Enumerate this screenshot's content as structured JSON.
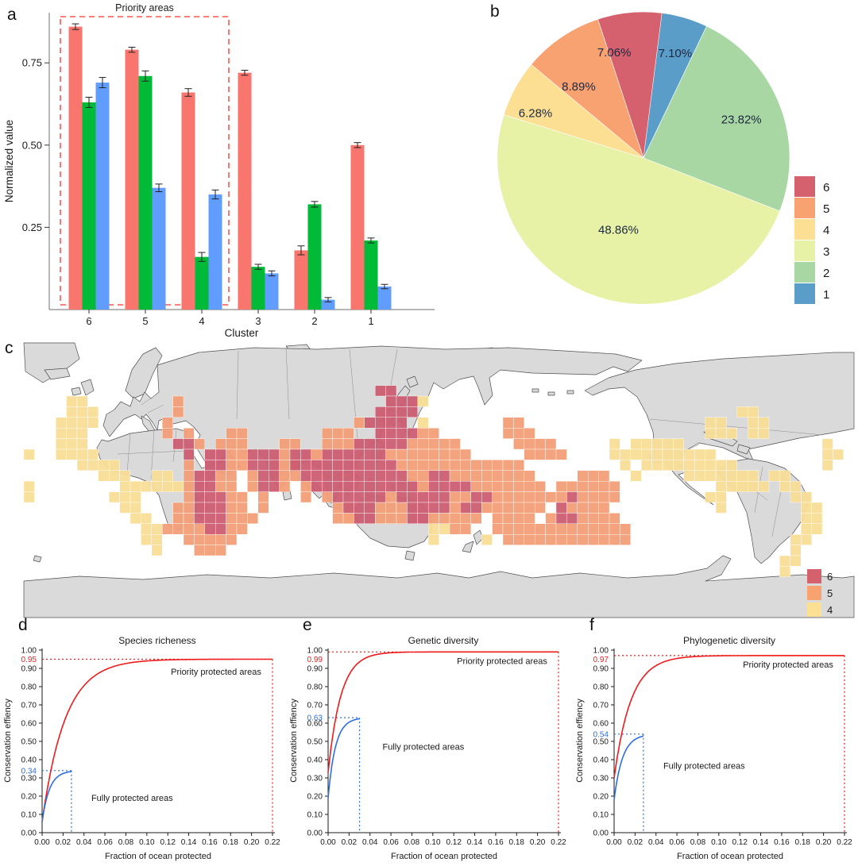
{
  "panels": {
    "a": "a",
    "b": "b",
    "c": "c",
    "d": "d",
    "e": "e",
    "f": "f"
  },
  "chart_data": {
    "a": {
      "type": "bar",
      "title": "Priority areas",
      "xlabel": "Cluster",
      "ylabel": "Normalized value",
      "categories": [
        "6",
        "5",
        "4",
        "3",
        "2",
        "1"
      ],
      "yticks": [
        0.25,
        0.5,
        0.75
      ],
      "ylim": [
        0,
        0.9
      ],
      "priority_box_categories": [
        "6",
        "5",
        "4"
      ],
      "priority_color": "#f8564e",
      "series": [
        {
          "name": "red",
          "color": "#f8766d",
          "values": [
            0.86,
            0.79,
            0.66,
            0.72,
            0.18,
            0.5
          ],
          "errors": [
            0.005,
            0.004,
            0.008,
            0.004,
            0.01,
            0.004
          ]
        },
        {
          "name": "green",
          "color": "#00ba38",
          "values": [
            0.63,
            0.71,
            0.16,
            0.13,
            0.32,
            0.21
          ],
          "errors": [
            0.012,
            0.012,
            0.01,
            0.004,
            0.005,
            0.004
          ]
        },
        {
          "name": "blue",
          "color": "#619cff",
          "values": [
            0.69,
            0.37,
            0.35,
            0.11,
            0.03,
            0.07
          ],
          "errors": [
            0.012,
            0.008,
            0.01,
            0.004,
            0.003,
            0.003
          ]
        }
      ]
    },
    "b": {
      "type": "pie",
      "start": "top",
      "direction": "clockwise",
      "label_color": "#1c2940",
      "slices": [
        {
          "label": "1",
          "value": 7.1,
          "pct": "7.10%",
          "color": "#5b9dc9",
          "lr": 0.75,
          "da": 4
        },
        {
          "label": "2",
          "value": 23.82,
          "pct": "23.82%",
          "color": "#a9d7a4",
          "lr": 0.72,
          "da": 0
        },
        {
          "label": "3",
          "value": 48.86,
          "pct": "48.86%",
          "color": "#e7f2a6",
          "lr": 0.52,
          "da": 0
        },
        {
          "label": "4",
          "value": 6.28,
          "pct": "6.28%",
          "color": "#fcdf92",
          "lr": 0.8,
          "da": -6
        },
        {
          "label": "5",
          "value": 8.89,
          "pct": "8.89%",
          "color": "#f8a171",
          "lr": 0.66,
          "da": -8
        },
        {
          "label": "6",
          "value": 7.06,
          "pct": "7.06%",
          "color": "#d5606e",
          "lr": 0.75,
          "da": -10
        }
      ],
      "legend": [
        {
          "label": "6",
          "color": "#d5606e"
        },
        {
          "label": "5",
          "color": "#f8a171"
        },
        {
          "label": "4",
          "color": "#fcdf92"
        },
        {
          "label": "3",
          "color": "#e7f2a6"
        },
        {
          "label": "2",
          "color": "#a9d7a4"
        },
        {
          "label": "1",
          "color": "#5b9dc9"
        }
      ]
    },
    "c": {
      "type": "map",
      "land_color": "#dadada",
      "coast_color": "#4f4f4f",
      "cell_size": 13.4,
      "legend": [
        {
          "label": "6",
          "color": "#d5606e"
        },
        {
          "label": "5",
          "color": "#f8a171"
        },
        {
          "label": "4",
          "color": "#fbe094"
        }
      ],
      "clusters": [
        {
          "label": "4",
          "color": "#f8dd96",
          "rows": {
            "5": [
              4,
              5,
              37
            ],
            "6": [
              4,
              5,
              6,
              67,
              68
            ],
            "7": [
              3,
              4,
              5,
              6,
              37,
              64,
              65,
              68,
              69
            ],
            "8": [
              3,
              4,
              5,
              64,
              65,
              66,
              68,
              69
            ],
            "9": [
              3,
              4,
              5,
              55,
              57,
              58,
              59,
              60,
              61,
              75
            ],
            "10": [
              0,
              3,
              4,
              5,
              6,
              55,
              56,
              57,
              58,
              59,
              60,
              61,
              62,
              63,
              64,
              75,
              76
            ],
            "11": [
              5,
              6,
              7,
              8,
              56,
              58,
              59,
              60,
              61,
              62,
              63,
              64,
              65,
              66,
              75
            ],
            "12": [
              7,
              8,
              9,
              12,
              13,
              57,
              62,
              63,
              64,
              65,
              66,
              67,
              68,
              70,
              71
            ],
            "13": [
              0,
              9,
              10,
              11,
              12,
              13,
              14,
              65,
              66,
              67,
              68,
              69,
              71,
              72
            ],
            "14": [
              0,
              8,
              9,
              10,
              64,
              65,
              72,
              73
            ],
            "15": [
              9,
              10,
              30,
              65,
              73,
              74
            ],
            "16": [
              10,
              11,
              30,
              73,
              74
            ],
            "17": [
              11,
              12,
              38,
              39,
              73,
              74
            ],
            "18": [
              11,
              12,
              38,
              43,
              72,
              73
            ],
            "19": [
              12,
              72
            ],
            "20": [
              71,
              72
            ],
            "21": [
              71
            ]
          }
        },
        {
          "label": "5",
          "color": "#f29e77",
          "rows": {
            "5": [
              14
            ],
            "6": [
              14
            ],
            "7": [
              13,
              31,
              45,
              46
            ],
            "8": [
              13,
              15,
              19,
              20,
              28,
              29,
              30,
              37,
              38,
              45,
              46,
              47
            ],
            "9": [
              16,
              18,
              19,
              20,
              24,
              25,
              28,
              29,
              30,
              36,
              37,
              38,
              39,
              40,
              46,
              47,
              48,
              49
            ],
            "10": [
              19,
              20,
              24,
              27,
              34,
              35,
              36,
              37,
              38,
              39,
              40,
              41,
              47,
              48,
              49,
              50
            ],
            "11": [
              15,
              19,
              20,
              24,
              25,
              35,
              36,
              37,
              38,
              39,
              40,
              41,
              42,
              43,
              44,
              45,
              46
            ],
            "12": [
              15,
              18,
              19,
              21,
              24,
              25,
              36,
              37,
              40,
              41,
              42,
              43,
              44,
              45,
              46,
              47,
              52,
              53,
              54
            ],
            "13": [
              15,
              18,
              19,
              21,
              24,
              26,
              37,
              42,
              43,
              44,
              45,
              46,
              47,
              48,
              50,
              51,
              52,
              53,
              54,
              55
            ],
            "14": [
              15,
              19,
              20,
              22,
              26,
              28,
              34,
              40,
              41,
              44,
              45,
              46,
              47,
              48,
              49,
              50,
              52,
              53,
              54,
              55
            ],
            "15": [
              14,
              15,
              19,
              20,
              22,
              29,
              33,
              34,
              35,
              40,
              43,
              44,
              45,
              46,
              47,
              48,
              51,
              52,
              53,
              54
            ],
            "16": [
              14,
              15,
              19,
              20,
              21,
              29,
              30,
              33,
              34,
              35,
              38,
              39,
              40,
              41,
              42,
              44,
              45,
              46,
              47,
              49,
              52,
              53,
              54,
              55
            ],
            "17": [
              13,
              14,
              15,
              16,
              19,
              20,
              40,
              41,
              44,
              45,
              46,
              47,
              48,
              49,
              50,
              51,
              52,
              53,
              54,
              55,
              56
            ],
            "18": [
              15,
              16,
              17,
              18,
              19,
              45,
              46,
              47,
              48,
              49,
              50,
              51,
              52,
              53,
              54,
              55,
              56
            ],
            "19": [
              16,
              17,
              18
            ]
          }
        },
        {
          "label": "6",
          "color": "#cb5d72",
          "rows": {
            "4": [
              33,
              34
            ],
            "5": [
              34,
              35,
              36
            ],
            "6": [
              33,
              34,
              35,
              36
            ],
            "7": [
              32,
              33,
              34,
              35
            ],
            "8": [
              33,
              34,
              35,
              36
            ],
            "9": [
              14,
              15,
              31,
              32,
              33,
              34,
              35
            ],
            "10": [
              15,
              17,
              18,
              21,
              22,
              23,
              25,
              26,
              28,
              29,
              30,
              31,
              32,
              33
            ],
            "11": [
              17,
              18,
              21,
              22,
              23,
              25,
              26,
              27,
              28,
              29,
              30,
              31,
              32,
              33,
              34
            ],
            "12": [
              16,
              17,
              22,
              23,
              26,
              27,
              28,
              29,
              30,
              31,
              32,
              33,
              34,
              35,
              38,
              39
            ],
            "13": [
              16,
              17,
              22,
              23,
              27,
              28,
              29,
              30,
              31,
              32,
              33,
              34,
              35,
              36,
              38,
              39,
              40,
              41
            ],
            "14": [
              16,
              17,
              18,
              29,
              30,
              31,
              32,
              33,
              35,
              36,
              37,
              38,
              39,
              42,
              43,
              51
            ],
            "15": [
              16,
              17,
              18,
              30,
              31,
              32,
              36,
              37,
              38,
              39,
              41,
              42,
              50
            ],
            "16": [
              16,
              17,
              18,
              31,
              32,
              36,
              37,
              50,
              51
            ],
            "17": [
              17,
              18
            ]
          }
        }
      ]
    },
    "d": {
      "type": "line",
      "title": "Species richeness",
      "xlabel": "Fraction of ocean protected",
      "ylabel": "Conservation effiency",
      "xlim": [
        0,
        0.22
      ],
      "ylim": [
        0,
        1.0
      ],
      "red": {
        "label": "0.95",
        "start": 0.06,
        "end": 0.95,
        "tau": 0.022,
        "name": "Priority protected areas",
        "ann": [
          0.123,
          0.865
        ]
      },
      "blue": {
        "label": "0.34",
        "start": 0.06,
        "end": 0.34,
        "tau": 0.007,
        "x_end": 0.028,
        "name": "Fully protected areas",
        "ann": [
          0.047,
          0.175
        ]
      }
    },
    "e": {
      "type": "line",
      "title": "Genetic diversity",
      "xlabel": "Fraction of ocean protected",
      "ylabel": "Conservation effiency",
      "xlim": [
        0,
        0.22
      ],
      "ylim": [
        0,
        1.0
      ],
      "red": {
        "label": "0.99",
        "start": 0.33,
        "end": 0.99,
        "tau": 0.012,
        "name": "Priority protected areas",
        "ann": [
          0.123,
          0.925
        ]
      },
      "blue": {
        "label": "0.63",
        "start": 0.19,
        "end": 0.63,
        "tau": 0.007,
        "x_end": 0.03,
        "name": "Fully protected areas",
        "ann": [
          0.052,
          0.455
        ]
      }
    },
    "f": {
      "type": "line",
      "title": "Phylogenetic diversity",
      "xlabel": "Fraction of ocean protected",
      "ylabel": "Conservation effiency",
      "xlim": [
        0,
        0.22
      ],
      "ylim": [
        0,
        1.0
      ],
      "red": {
        "label": "0.97",
        "start": 0.3,
        "end": 0.97,
        "tau": 0.016,
        "name": "Priority protected areas",
        "ann": [
          0.123,
          0.905
        ]
      },
      "blue": {
        "label": "0.54",
        "start": 0.18,
        "end": 0.54,
        "tau": 0.008,
        "x_end": 0.028,
        "name": "Fully protected areas",
        "ann": [
          0.047,
          0.35
        ]
      }
    }
  },
  "colors": {
    "curve_red": "#ee1c1c",
    "curve_blue": "#2e6de5",
    "axis": "#1a1a1a",
    "bar_axis": "#8a8a8a"
  }
}
